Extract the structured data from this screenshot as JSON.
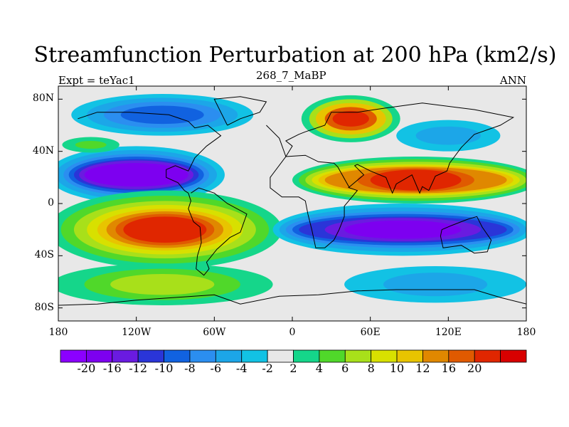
{
  "chart_data": {
    "type": "heatmap",
    "title": "Streamfunction Perturbation at 200 hPa (km2/s)",
    "subtitle_left": "Expt = teYac1",
    "subtitle_center": "268_7_MaBP",
    "subtitle_right": "ANN",
    "x_ticks": [
      "180",
      "120W",
      "60W",
      "0",
      "60E",
      "120E",
      "180"
    ],
    "x_values": [
      -180,
      -120,
      -60,
      0,
      60,
      120,
      180
    ],
    "y_ticks": [
      "80N",
      "40N",
      "0",
      "40S",
      "80S"
    ],
    "y_values": [
      80,
      40,
      0,
      -40,
      -80
    ],
    "xlim": [
      -180,
      180
    ],
    "ylim": [
      -90,
      90
    ],
    "colorbar_labels": [
      "-20",
      "-16",
      "-12",
      "-10",
      "-8",
      "-6",
      "-4",
      "-2",
      "2",
      "4",
      "6",
      "8",
      "10",
      "12",
      "16",
      "20"
    ],
    "colorbar_colors": [
      "#8b00ff",
      "#7d00f0",
      "#6a1be0",
      "#2a35d8",
      "#1162e0",
      "#2b8ef0",
      "#1ca6e8",
      "#12c2e4",
      "#e8e8e8",
      "#15d68a",
      "#50d82a",
      "#a8e01a",
      "#d8e000",
      "#e8c400",
      "#e08800",
      "#e05a00",
      "#e02600",
      "#d80000"
    ],
    "features": [
      {
        "name": "north-pacific-low",
        "lon": -100,
        "lat": 70,
        "value": -10
      },
      {
        "name": "tropical-east-pacific-low",
        "lon": -120,
        "lat": 20,
        "value": -20
      },
      {
        "name": "south-pacific-high",
        "lon": -100,
        "lat": -20,
        "value": 20
      },
      {
        "name": "asian-high",
        "lon": 100,
        "lat": 18,
        "value": 20
      },
      {
        "name": "indian-ocean-low",
        "lon": 90,
        "lat": -20,
        "value": -20
      },
      {
        "name": "eurasia-high",
        "lon": 45,
        "lat": 65,
        "value": 16
      }
    ]
  },
  "colors": {
    "background": "#e8e8e8",
    "coast": "#000000"
  }
}
